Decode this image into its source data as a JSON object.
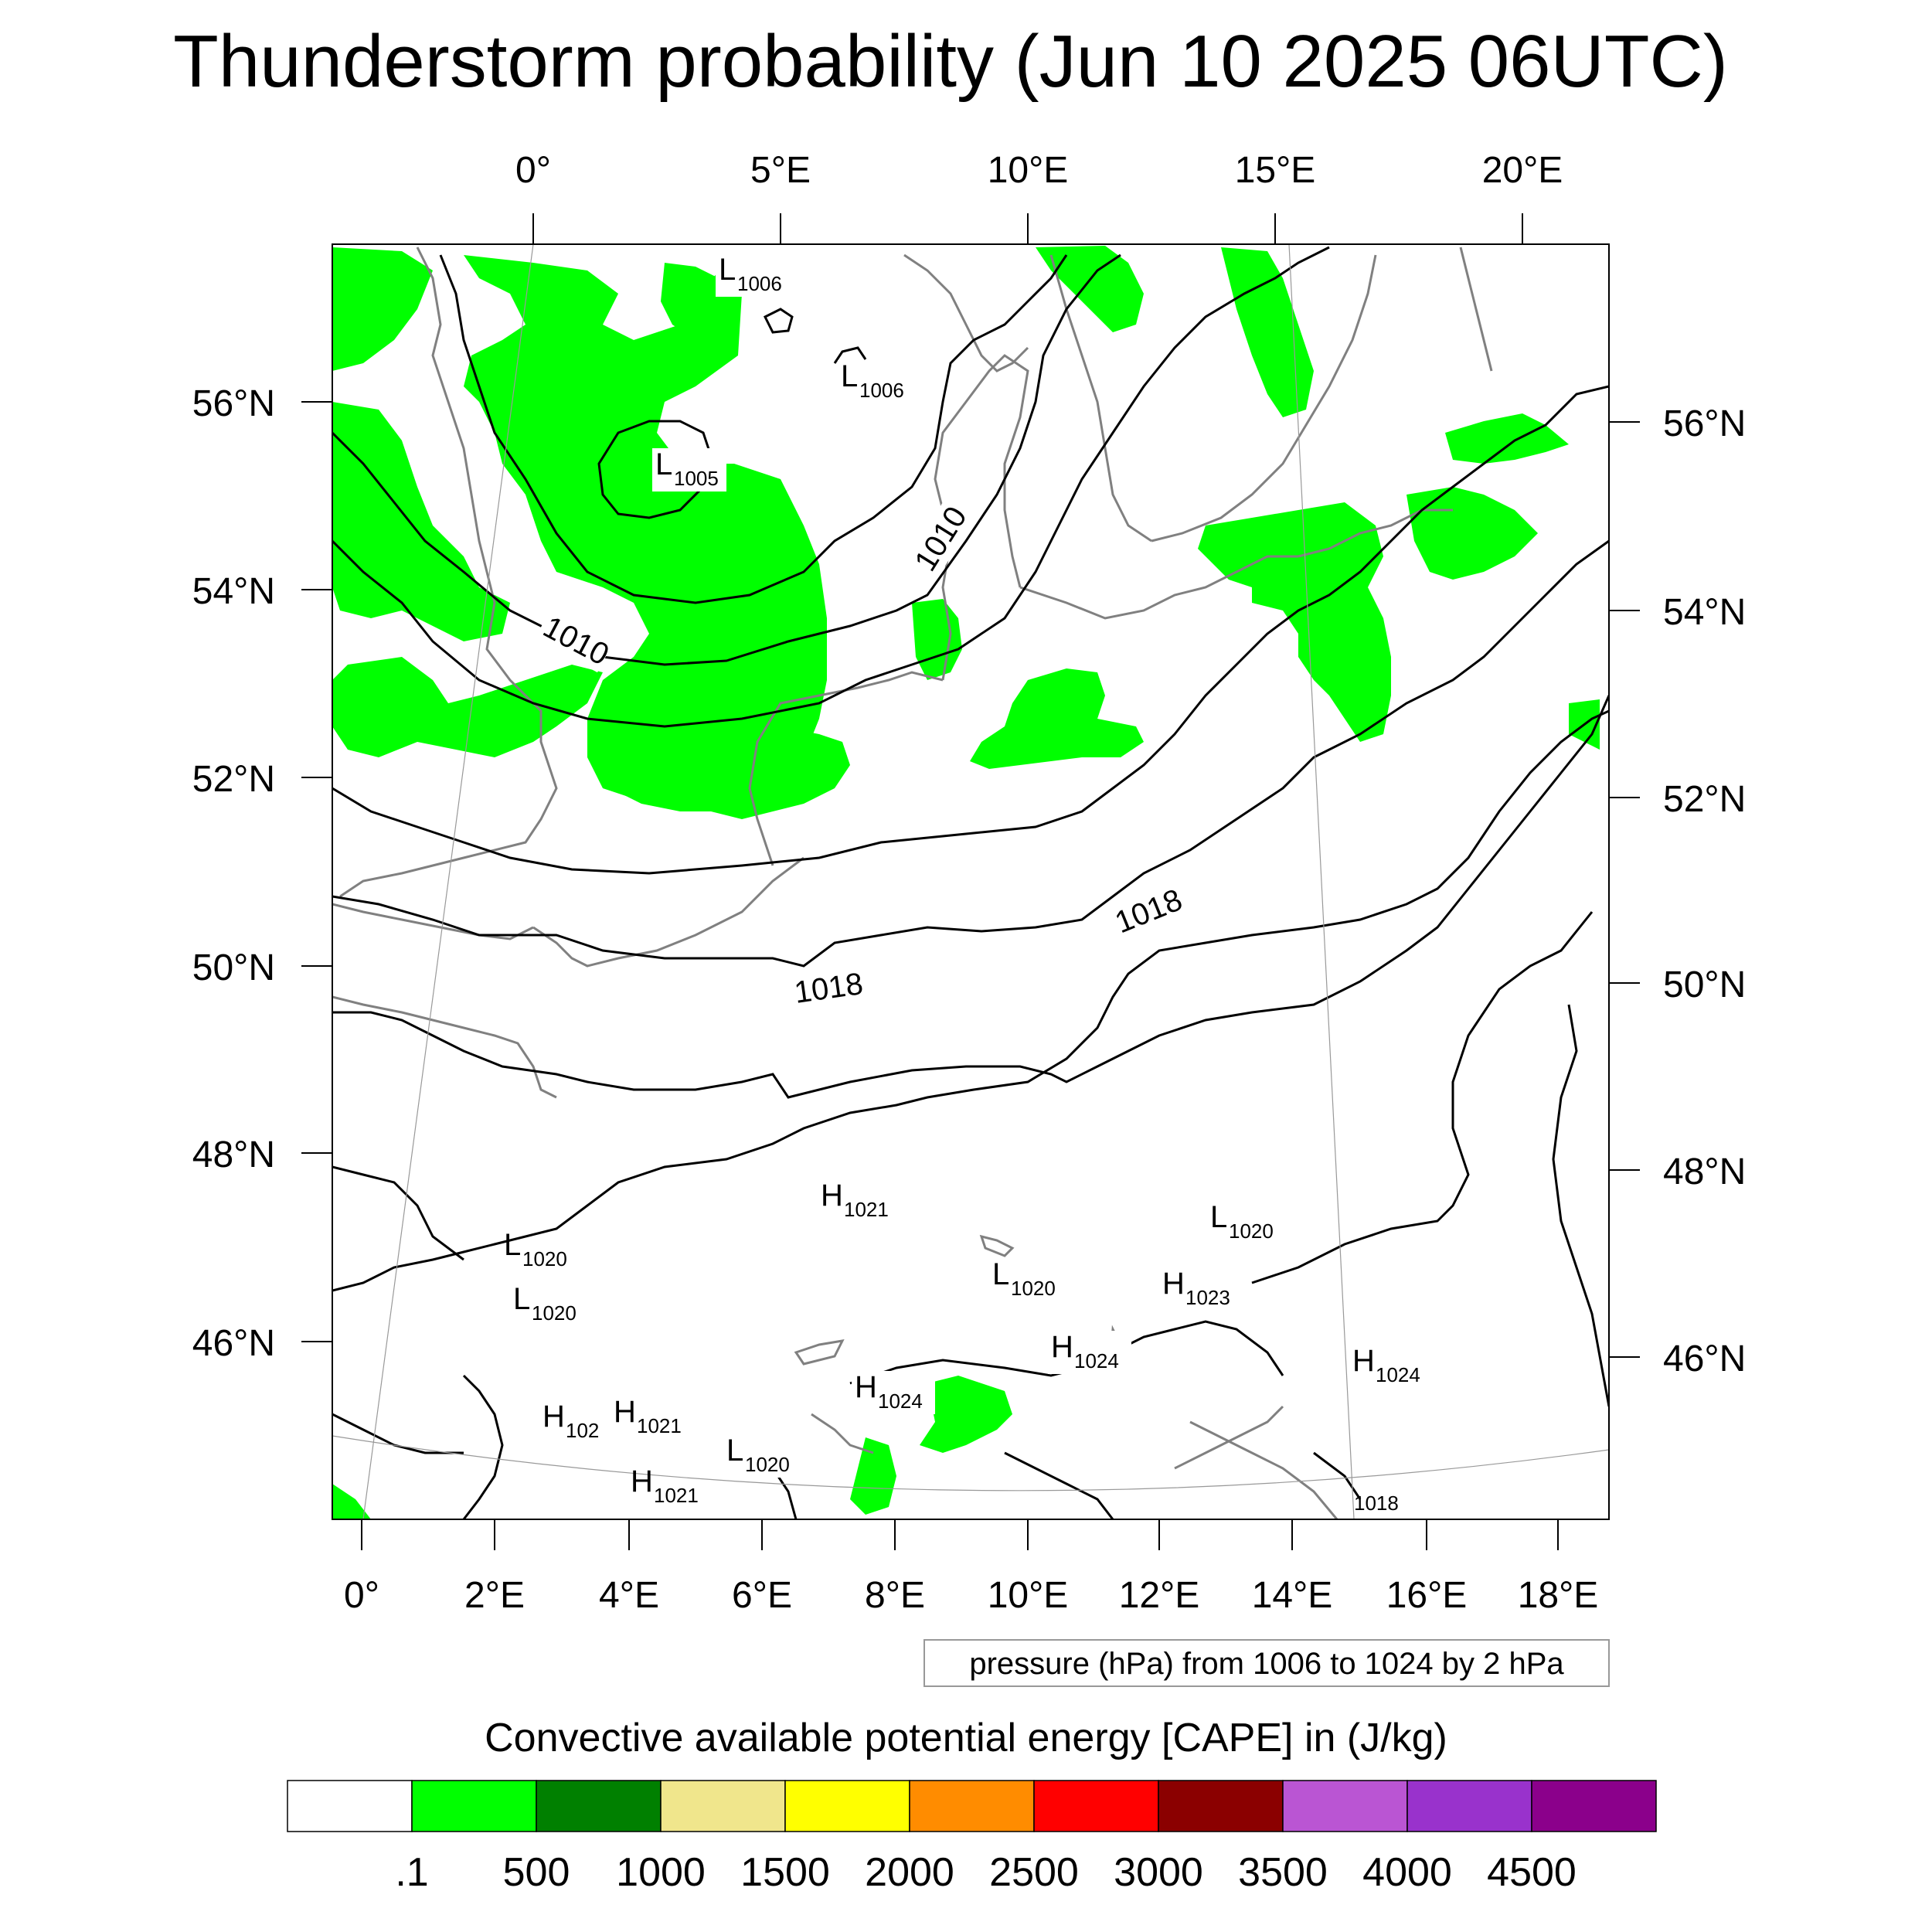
{
  "title": "Thunderstorm probability (Jun 10 2025 06UTC)",
  "top_lon_labels": [
    "0°",
    "5°E",
    "10°E",
    "15°E",
    "20°E"
  ],
  "bottom_lon_labels": [
    "0°",
    "2°E",
    "4°E",
    "6°E",
    "8°E",
    "10°E",
    "12°E",
    "14°E",
    "16°E",
    "18°E"
  ],
  "left_lat_labels": [
    "56°N",
    "54°N",
    "52°N",
    "50°N",
    "48°N",
    "46°N"
  ],
  "right_lat_labels": [
    "56°N",
    "54°N",
    "52°N",
    "50°N",
    "48°N",
    "46°N"
  ],
  "contour_labels": [
    "1010",
    "1010",
    "1018",
    "1018"
  ],
  "pressure_centers": [
    {
      "type": "L",
      "value": "1006"
    },
    {
      "type": "L",
      "value": "1006"
    },
    {
      "type": "L",
      "value": "1005"
    },
    {
      "type": "H",
      "value": "1021"
    },
    {
      "type": "L",
      "value": "1020"
    },
    {
      "type": "L",
      "value": "1020"
    },
    {
      "type": "L",
      "value": "1020"
    },
    {
      "type": "L",
      "value": "1020"
    },
    {
      "type": "H",
      "value": "1023"
    },
    {
      "type": "H",
      "value": "1024"
    },
    {
      "type": "H",
      "value": "1024"
    },
    {
      "type": "H",
      "value": "1024"
    },
    {
      "type": "H",
      "value": "102"
    },
    {
      "type": "H",
      "value": "1021"
    },
    {
      "type": "L",
      "value": "1020"
    },
    {
      "type": "H",
      "value": "1021"
    }
  ],
  "small_label": "1018",
  "pressure_note": "pressure (hPa) from 1006 to 1024 by 2 hPa",
  "legend": {
    "title": "Convective available potential energy [CAPE] in (J/kg)",
    "colors": [
      "#ffffff",
      "#00ff00",
      "#008000",
      "#f0e68c",
      "#ffff00",
      "#ff8c00",
      "#ff0000",
      "#8b0000",
      "#ba55d3",
      "#9932cc",
      "#8b008b"
    ],
    "labels": [
      ".1",
      "500",
      "1000",
      "1500",
      "2000",
      "2500",
      "3000",
      "3500",
      "4000",
      "4500"
    ]
  },
  "colors": {
    "cape_green": "#00ff00",
    "isobar": "#000000",
    "coastline": "#808080",
    "frame": "#000000"
  }
}
